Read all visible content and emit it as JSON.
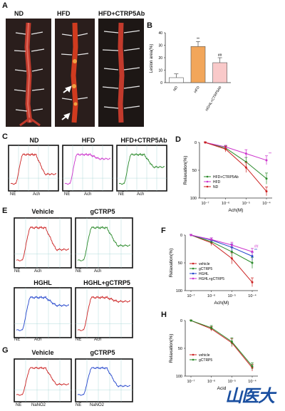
{
  "panels": {
    "A": "A",
    "B": "B",
    "C": "C",
    "D": "D",
    "E": "E",
    "F": "F",
    "G": "G",
    "H": "H"
  },
  "photos": {
    "nd": "ND",
    "hfd": "HFD",
    "hfd_ab": "HFD+CTRP5Ab"
  },
  "traces_c": {
    "nd": "ND",
    "hfd": "HFD",
    "hfd_ab": "HFD+CTRP5Ab",
    "ne": "NE",
    "ach": "Ach"
  },
  "traces_e": {
    "vehicle": "Vehicle",
    "gctrp5": "gCTRP5",
    "hghl": "HGHL",
    "hghl_g": "HGHL+gCTRP5",
    "ne": "NE",
    "ach": "Ach"
  },
  "traces_g": {
    "vehicle": "Vehicle",
    "gctrp5": "gCTRP5",
    "ne": "NE",
    "nano2": "NaNO2"
  },
  "watermark": "山医大",
  "colors": {
    "red": "#cc2222",
    "magenta": "#cc33cc",
    "green": "#2a8a2a",
    "blue": "#2244cc",
    "orange": "#f2a65a",
    "pink": "#f9c9c9"
  },
  "chart_data": [
    {
      "id": "B",
      "type": "bar",
      "ylabel": "Lesion area(%)",
      "categories": [
        "ND",
        "HFD",
        "HGHL+CTRP5Ab"
      ],
      "values": [
        4,
        29,
        16
      ],
      "errors": [
        3,
        4,
        4
      ],
      "marks": [
        "",
        "**",
        "##"
      ],
      "ylim": [
        0,
        40
      ],
      "yticks": [
        "0",
        "10",
        "20",
        "30",
        "40"
      ]
    },
    {
      "id": "D",
      "type": "line",
      "xlabel": "Ach(M)",
      "ylabel": "Relaxation(%)",
      "xticks": [
        "10⁻⁷",
        "10⁻⁶",
        "10⁻⁵",
        "10⁻⁴"
      ],
      "yticks": [
        "0",
        "50",
        "100"
      ],
      "ylim": [
        0,
        100
      ],
      "series": [
        {
          "name": "HFD+CTRP5Ab",
          "color": "#2a8a2a",
          "values": [
            0,
            10,
            35,
            65
          ],
          "errors": [
            1,
            4,
            8,
            10
          ]
        },
        {
          "name": "HFD",
          "color": "#cc33cc",
          "values": [
            0,
            8,
            20,
            32
          ],
          "errors": [
            1,
            3,
            7,
            8
          ],
          "marks": [
            "",
            "",
            "",
            "**"
          ]
        },
        {
          "name": "ND",
          "color": "#cc2222",
          "values": [
            0,
            12,
            45,
            88
          ],
          "errors": [
            1,
            5,
            9,
            8
          ]
        }
      ]
    },
    {
      "id": "F",
      "type": "line",
      "xlabel": "Ach(M)",
      "ylabel": "Relaxation(%)",
      "xticks": [
        "10⁻⁷",
        "10⁻⁶",
        "10⁻⁵",
        "10⁻⁴"
      ],
      "yticks": [
        "0",
        "50",
        "100"
      ],
      "ylim": [
        0,
        100
      ],
      "series": [
        {
          "name": "vehicle",
          "color": "#cc2222",
          "values": [
            0,
            14,
            42,
            85
          ],
          "errors": [
            1,
            5,
            10,
            8
          ]
        },
        {
          "name": "gCTRP5",
          "color": "#2a8a2a",
          "values": [
            0,
            12,
            30,
            50
          ],
          "errors": [
            1,
            4,
            8,
            10
          ]
        },
        {
          "name": "HGHL",
          "color": "#2244cc",
          "values": [
            0,
            9,
            22,
            38
          ],
          "errors": [
            1,
            4,
            6,
            7
          ],
          "marks": [
            "",
            "",
            "",
            "**"
          ]
        },
        {
          "name": "HGHL+gCTRP5",
          "color": "#cc33cc",
          "values": [
            0,
            8,
            18,
            30
          ],
          "errors": [
            1,
            3,
            5,
            6
          ],
          "marks": [
            "",
            "",
            "",
            "##"
          ]
        }
      ]
    },
    {
      "id": "H",
      "type": "line",
      "xlabel": "Acid",
      "ylabel": "Relaxation(%)",
      "xticks": [
        "10⁻⁷",
        "10⁻⁶",
        "10⁻⁵",
        "10⁻⁴"
      ],
      "yticks": [
        "0",
        "50",
        "100"
      ],
      "ylim": [
        0,
        100
      ],
      "series": [
        {
          "name": "vehicle",
          "color": "#cc2222",
          "values": [
            0,
            15,
            40,
            85
          ],
          "errors": [
            1,
            4,
            7,
            6
          ]
        },
        {
          "name": "gCTRP5",
          "color": "#2a8a2a",
          "values": [
            0,
            13,
            38,
            82
          ],
          "errors": [
            1,
            4,
            7,
            6
          ]
        }
      ]
    }
  ]
}
